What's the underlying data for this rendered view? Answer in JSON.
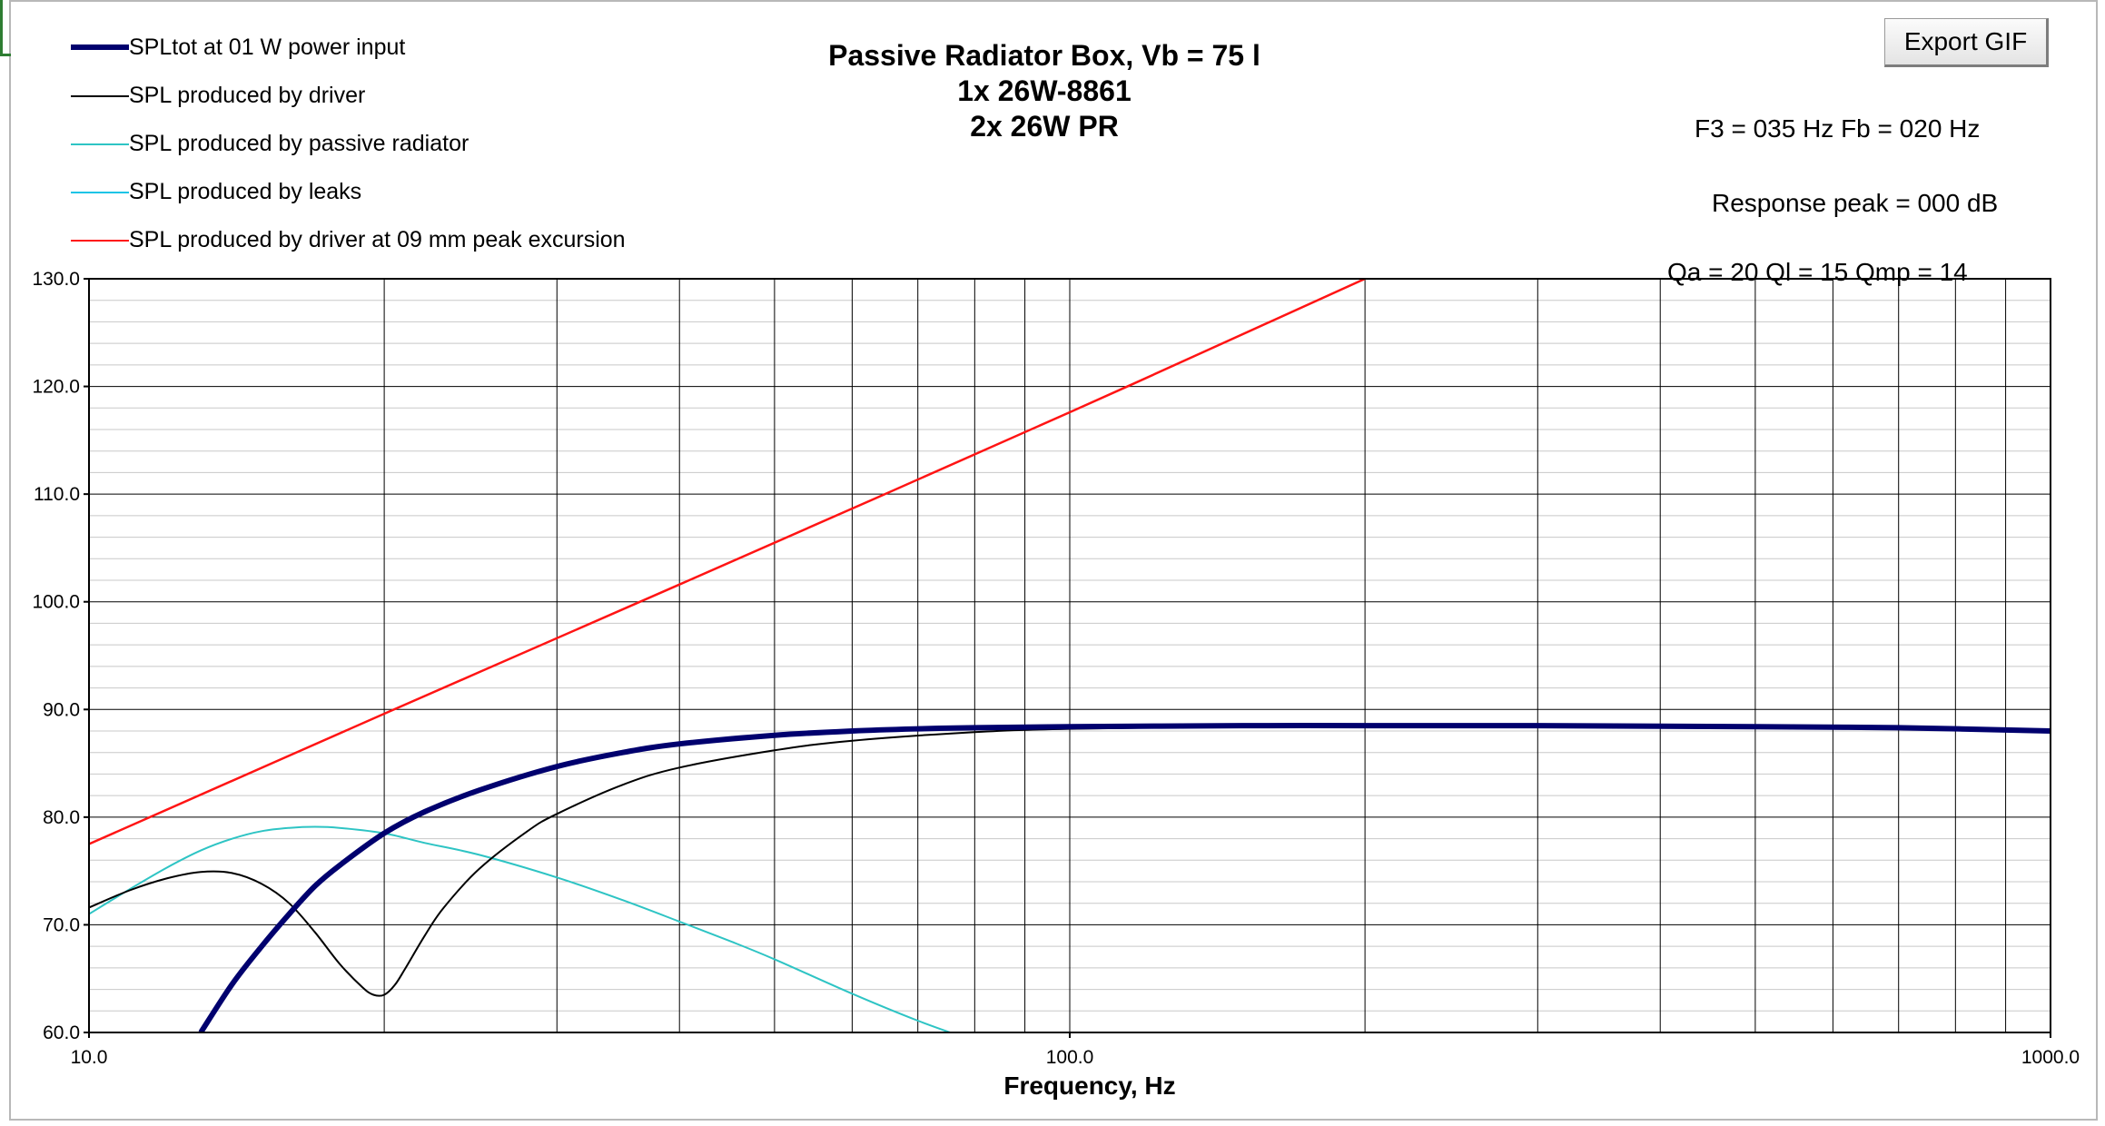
{
  "export_button_label": "Export GIF",
  "title_lines": [
    "Passive Radiator Box, Vb = 75 l",
    "1x 26W-8861",
    "2x 26W PR"
  ],
  "info": {
    "f3_fb": "F3 = 035 Hz  Fb = 020 Hz",
    "response_peak": "Response peak = 000 dB",
    "q_values": "Qa = 20  Ql = 15  Qmp = 14"
  },
  "legend": [
    {
      "label": "SPLtot at 01 W power input",
      "color": "#00006e",
      "width": 6
    },
    {
      "label": "SPL produced by driver",
      "color": "#000000",
      "width": 2
    },
    {
      "label": "SPL produced by passive radiator",
      "color": "#2ec4c4",
      "width": 2
    },
    {
      "label": "SPL produced by leaks",
      "color": "#19c4e6",
      "width": 2
    },
    {
      "label": "SPL produced by driver at 09 mm peak excursion",
      "color": "#ff1414",
      "width": 2.5
    }
  ],
  "chart_data": {
    "type": "line",
    "xlabel": "Frequency, Hz",
    "ylabel": "",
    "xscale": "log",
    "xlim": [
      10,
      1000
    ],
    "ylim": [
      60,
      130
    ],
    "x_ticks": [
      "10.0",
      "100.0",
      "1000.0"
    ],
    "y_ticks": [
      "60.0",
      "70.0",
      "80.0",
      "90.0",
      "100.0",
      "110.0",
      "120.0",
      "130.0"
    ],
    "grid": true,
    "legend_position": "top-left",
    "series": [
      {
        "name": "SPLtot at 01 W power input",
        "color": "#00006e",
        "x": [
          13.0,
          14.0,
          15.0,
          16.0,
          17.0,
          18.0,
          20.0,
          22.0,
          25.0,
          30.0,
          35.0,
          40.0,
          50.0,
          60.0,
          70.0,
          80.0,
          100.0,
          150.0,
          200.0,
          300.0,
          500.0,
          700.0,
          1000.0
        ],
        "y": [
          60.0,
          64.5,
          68.0,
          71.0,
          73.6,
          75.5,
          78.5,
          80.5,
          82.5,
          84.7,
          86.0,
          86.8,
          87.6,
          88.0,
          88.2,
          88.3,
          88.4,
          88.5,
          88.5,
          88.5,
          88.4,
          88.3,
          88.0
        ]
      },
      {
        "name": "SPL produced by driver",
        "color": "#000000",
        "x": [
          10.0,
          11.0,
          12.0,
          13.0,
          14.0,
          15.0,
          16.0,
          17.0,
          18.0,
          19.0,
          19.5,
          20.0,
          20.5,
          21.0,
          22.0,
          23.0,
          25.0,
          28.0,
          30.0,
          35.0,
          40.0,
          50.0,
          60.0,
          80.0,
          100.0,
          150.0,
          200.0,
          300.0,
          500.0,
          700.0,
          1000.0
        ],
        "y": [
          71.6,
          73.2,
          74.3,
          74.9,
          74.8,
          73.8,
          72.0,
          69.3,
          66.4,
          64.2,
          63.5,
          63.5,
          64.4,
          65.9,
          69.0,
          71.6,
          75.2,
          78.7,
          80.3,
          83.0,
          84.6,
          86.2,
          87.1,
          87.9,
          88.2,
          88.4,
          88.5,
          88.5,
          88.4,
          88.3,
          88.0
        ]
      },
      {
        "name": "SPL produced by passive radiator",
        "color": "#2ec4c4",
        "x": [
          10.0,
          11.0,
          12.0,
          13.0,
          14.0,
          15.0,
          16.0,
          17.0,
          18.0,
          20.0,
          22.0,
          25.0,
          30.0,
          35.0,
          40.0,
          45.0,
          50.0,
          60.0,
          70.0,
          80.0,
          85.0
        ],
        "y": [
          71.0,
          73.3,
          75.3,
          76.9,
          78.0,
          78.7,
          79.0,
          79.1,
          79.0,
          78.5,
          77.6,
          76.5,
          74.4,
          72.3,
          70.3,
          68.5,
          66.8,
          63.6,
          61.1,
          59.2,
          58.3
        ]
      },
      {
        "name": "SPL produced by leaks",
        "color": "#19c4e6",
        "x": [],
        "y": []
      },
      {
        "name": "SPL produced by driver at 09 mm peak excursion",
        "color": "#ff1414",
        "x": [
          10.0,
          20.0,
          40.0,
          100.0,
          200.0
        ],
        "y": [
          77.5,
          89.6,
          101.6,
          117.6,
          130.0
        ]
      }
    ]
  }
}
